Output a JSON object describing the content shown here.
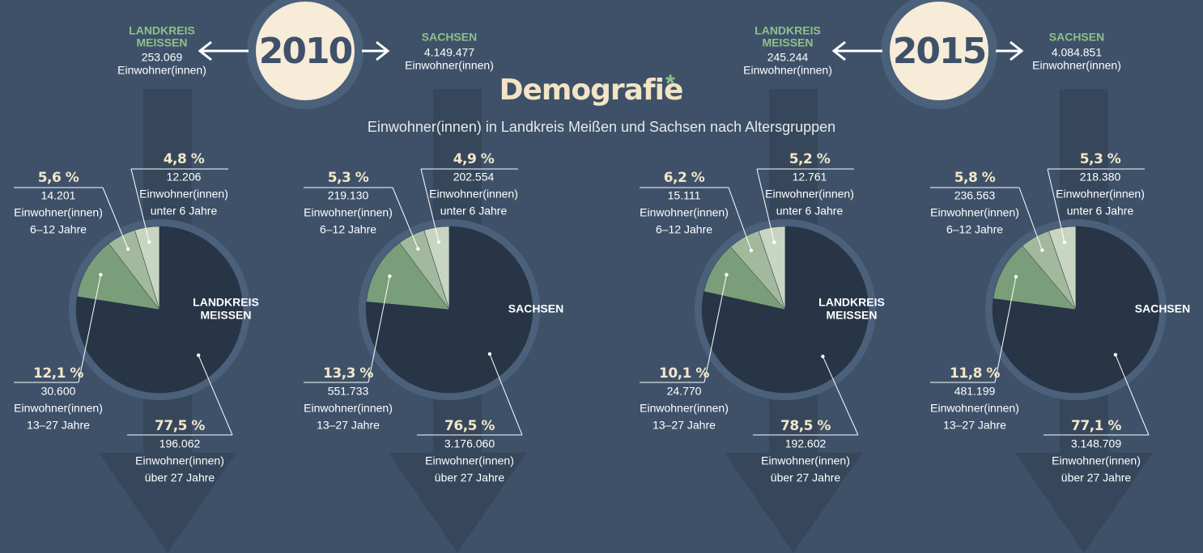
{
  "title": "Demografie",
  "title_mark": "*",
  "subtitle": "Einwohner(innen) in Landkreis Meißen und Sachsen nach Altersgruppen",
  "years": [
    {
      "year": "2010",
      "left": {
        "name_lines": [
          "LANDKREIS",
          "MEISSEN"
        ],
        "population": "253.069",
        "unit": "Einwohner(innen)"
      },
      "right": {
        "name_lines": [
          "SACHSEN"
        ],
        "population": "4.149.477",
        "unit": "Einwohner(innen)"
      }
    },
    {
      "year": "2015",
      "left": {
        "name_lines": [
          "LANDKREIS",
          "MEISSEN"
        ],
        "population": "245.244",
        "unit": "Einwohner(innen)"
      },
      "right": {
        "name_lines": [
          "SACHSEN"
        ],
        "population": "4.084.851",
        "unit": "Einwohner(innen)"
      }
    }
  ],
  "chart_data": [
    {
      "type": "pie",
      "name_lines": [
        "LANDKREIS",
        "MEISSEN"
      ],
      "unit": "Einwohner(innen)",
      "categories": [
        "unter 6 Jahre",
        "6–12 Jahre",
        "13–27 Jahre",
        "über 27 Jahre"
      ],
      "values": [
        4.8,
        5.6,
        12.1,
        77.5
      ],
      "value_labels": [
        "4,8 %",
        "5,6 %",
        "12,1 %",
        "77,5 %"
      ],
      "counts": [
        "12.206",
        "14.201",
        "30.600",
        "196.062"
      ],
      "colors": [
        "#c8d5c1",
        "#a2b99d",
        "#7a9e79",
        "#273546"
      ]
    },
    {
      "type": "pie",
      "name_lines": [
        "SACHSEN"
      ],
      "unit": "Einwohner(innen)",
      "categories": [
        "unter 6 Jahre",
        "6–12 Jahre",
        "13–27 Jahre",
        "über 27 Jahre"
      ],
      "values": [
        4.9,
        5.3,
        13.3,
        76.5
      ],
      "value_labels": [
        "4,9 %",
        "5,3 %",
        "13,3 %",
        "76,5 %"
      ],
      "counts": [
        "202.554",
        "219.130",
        "551.733",
        "3.176.060"
      ],
      "colors": [
        "#c8d5c1",
        "#a2b99d",
        "#7a9e79",
        "#273546"
      ]
    },
    {
      "type": "pie",
      "name_lines": [
        "LANDKREIS",
        "MEISSEN"
      ],
      "unit": "Einwohner(innen)",
      "categories": [
        "unter 6 Jahre",
        "6–12 Jahre",
        "13–27 Jahre",
        "über 27 Jahre"
      ],
      "values": [
        5.2,
        6.2,
        10.1,
        78.5
      ],
      "value_labels": [
        "5,2 %",
        "6,2 %",
        "10,1 %",
        "78,5 %"
      ],
      "counts": [
        "12.761",
        "15.111",
        "24.770",
        "192.602"
      ],
      "colors": [
        "#c8d5c1",
        "#a2b99d",
        "#7a9e79",
        "#273546"
      ]
    },
    {
      "type": "pie",
      "name_lines": [
        "SACHSEN"
      ],
      "unit": "Einwohner(innen)",
      "categories": [
        "unter 6 Jahre",
        "6–12 Jahre",
        "13–27 Jahre",
        "über 27 Jahre"
      ],
      "values": [
        5.3,
        5.8,
        11.8,
        77.1
      ],
      "value_labels": [
        "5,3 %",
        "5,8 %",
        "11,8 %",
        "77,1 %"
      ],
      "counts": [
        "218.380",
        "236.563",
        "481.199",
        "3.148.709"
      ],
      "colors": [
        "#c8d5c1",
        "#a2b99d",
        "#7a9e79",
        "#273546"
      ]
    }
  ]
}
